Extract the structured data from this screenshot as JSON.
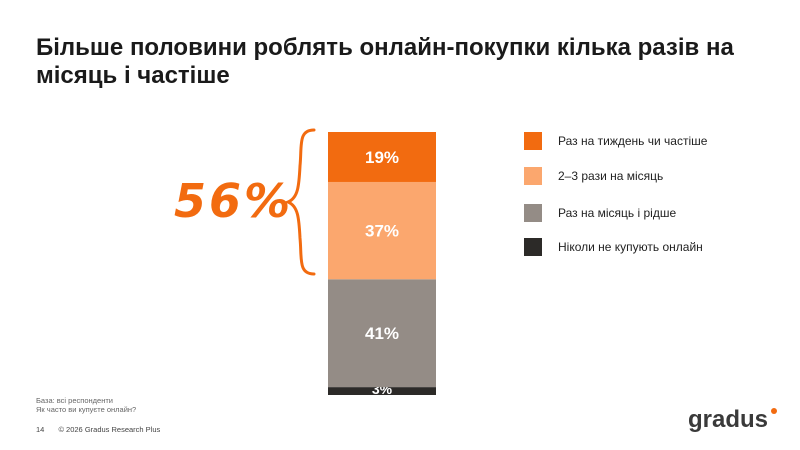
{
  "title": "Більше половини роблять онлайн-покупки кілька разів на місяць і частіше",
  "highlight": "56%",
  "colors": {
    "accent": "#F26B10"
  },
  "chart_data": {
    "type": "bar",
    "stacked": true,
    "categories": [
      ""
    ],
    "ylim": [
      0,
      100
    ],
    "series": [
      {
        "name": "Ніколи не купують онлайн",
        "value": 3,
        "label": "3%",
        "color": "#2C2A28"
      },
      {
        "name": "Раз на місяць і рідше",
        "value": 41,
        "label": "41%",
        "color": "#948C86"
      },
      {
        "name": "2–3 рази на місяць",
        "value": 37,
        "label": "37%",
        "color": "#FBA76E"
      },
      {
        "name": "Раз на тиждень чи частіше",
        "value": 19,
        "label": "19%",
        "color": "#F26B10"
      }
    ]
  },
  "legend": [
    {
      "label": "Раз на тиждень чи частіше",
      "color": "#F26B10"
    },
    {
      "label": "2–3 рази на місяць",
      "color": "#FBA76E"
    },
    {
      "label": "Раз на місяць і рідше",
      "color": "#948C86"
    },
    {
      "label": "Ніколи не купують онлайн",
      "color": "#2C2A28"
    }
  ],
  "footnote": {
    "base": "База: всі респонденти",
    "question": "Як часто ви купуєте онлайн?"
  },
  "footer": {
    "page": "14",
    "copyright": "© 2026 Gradus Research Plus"
  },
  "logo": "gradus"
}
